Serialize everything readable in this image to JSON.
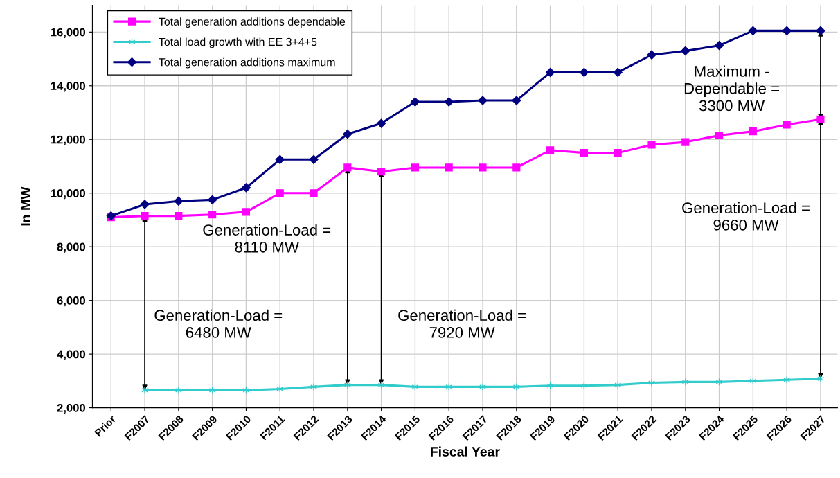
{
  "chart_data": {
    "type": "line",
    "xlabel": "Fiscal Year",
    "ylabel": "In MW",
    "categories": [
      "Prior",
      "F2007",
      "F2008",
      "F2009",
      "F2010",
      "F2011",
      "F2012",
      "F2013",
      "F2014",
      "F2015",
      "F2016",
      "F2017",
      "F2018",
      "F2019",
      "F2020",
      "F2021",
      "F2022",
      "F2023",
      "F2024",
      "F2025",
      "F2026",
      "F2027"
    ],
    "series": [
      {
        "name": "Total generation additions dependable",
        "color": "#ff00ff",
        "marker": "square",
        "values": [
          9100,
          9150,
          9150,
          9200,
          9300,
          10000,
          10000,
          10950,
          10800,
          10950,
          10950,
          10950,
          10950,
          11600,
          11500,
          11500,
          11800,
          11900,
          12150,
          12300,
          12550,
          12750
        ]
      },
      {
        "name": "Total load growth with EE 3+4+5",
        "color": "#33cccc",
        "marker": "cross",
        "values": [
          null,
          2650,
          2650,
          2650,
          2650,
          2700,
          2780,
          2850,
          2850,
          2780,
          2780,
          2780,
          2780,
          2820,
          2820,
          2850,
          2930,
          2960,
          2960,
          3000,
          3040,
          3080
        ]
      },
      {
        "name": "Total generation additions maximum",
        "color": "#000080",
        "marker": "diamond",
        "values": [
          9150,
          9580,
          9700,
          9750,
          10200,
          11250,
          11250,
          12200,
          12600,
          13400,
          13400,
          13450,
          13450,
          14500,
          14500,
          14500,
          15150,
          15300,
          15500,
          16050,
          16050,
          16050
        ]
      }
    ],
    "ylim": [
      2000,
      17000
    ],
    "yticks": [
      {
        "value": 2000,
        "label": "2,000"
      },
      {
        "value": 4000,
        "label": "4,000"
      },
      {
        "value": 6000,
        "label": "6,000"
      },
      {
        "value": 8000,
        "label": "8,000"
      },
      {
        "value": 10000,
        "label": "10,000"
      },
      {
        "value": 12000,
        "label": "12,000"
      },
      {
        "value": 14000,
        "label": "14,000"
      },
      {
        "value": 16000,
        "label": "16,000"
      }
    ],
    "grid": true,
    "legend": "top left",
    "line_style": "solid",
    "annotations": [
      "Generation-Load =\n6480 MW",
      "Generation-Load =\n8110 MW",
      "Generation-Load =\n7920 MW",
      "Maximum -\nDependable =\n3300 MW",
      "Generation-Load =\n9660 MW"
    ]
  }
}
